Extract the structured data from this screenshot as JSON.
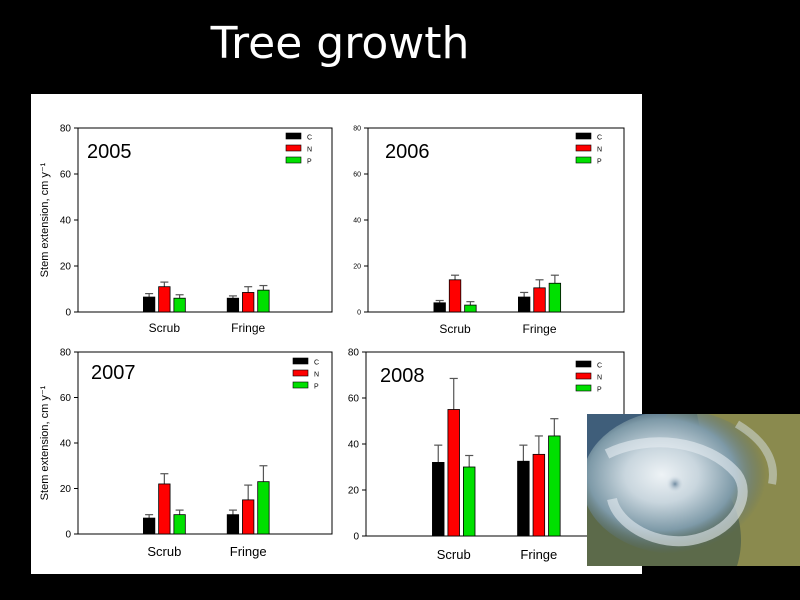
{
  "slide": {
    "title": "Tree growth"
  },
  "colors": {
    "C": "#000000",
    "N": "#ff0000",
    "P": "#00e000",
    "background": "#000000",
    "panel": "#ffffff"
  },
  "image": {
    "icon": "satellite-cyclone-image"
  },
  "chart_data": [
    {
      "type": "bar",
      "title": "2005",
      "categories": [
        "Scrub",
        "Fringe"
      ],
      "series": [
        {
          "name": "C",
          "values": [
            6.5,
            6.0
          ],
          "errors": [
            1.5,
            1.0
          ]
        },
        {
          "name": "N",
          "values": [
            11.0,
            8.5
          ],
          "errors": [
            2.0,
            2.5
          ]
        },
        {
          "name": "P",
          "values": [
            6.0,
            9.5
          ],
          "errors": [
            1.5,
            2.0
          ]
        }
      ],
      "ylabel": "Stem extension, cm y⁻¹",
      "ylim": [
        0,
        80
      ],
      "yticks": [
        0,
        20,
        40,
        60,
        80
      ],
      "legend": "top-right",
      "grid": false
    },
    {
      "type": "bar",
      "title": "2006",
      "categories": [
        "Scrub",
        "Fringe"
      ],
      "series": [
        {
          "name": "C",
          "values": [
            4.0,
            6.5
          ],
          "errors": [
            1.0,
            2.0
          ]
        },
        {
          "name": "N",
          "values": [
            14.0,
            10.5
          ],
          "errors": [
            2.0,
            3.5
          ]
        },
        {
          "name": "P",
          "values": [
            3.0,
            12.5
          ],
          "errors": [
            1.5,
            3.5
          ]
        }
      ],
      "ylabel": "",
      "ylim": [
        0,
        80
      ],
      "yticks": [
        0,
        20,
        40,
        60,
        80
      ],
      "legend": "top-right",
      "grid": false
    },
    {
      "type": "bar",
      "title": "2007",
      "categories": [
        "Scrub",
        "Fringe"
      ],
      "series": [
        {
          "name": "C",
          "values": [
            7.0,
            8.5
          ],
          "errors": [
            1.5,
            2.0
          ]
        },
        {
          "name": "N",
          "values": [
            22.0,
            15.0
          ],
          "errors": [
            4.5,
            6.5
          ]
        },
        {
          "name": "P",
          "values": [
            8.5,
            23.0
          ],
          "errors": [
            2.0,
            7.0
          ]
        }
      ],
      "ylabel": "Stem extension, cm y⁻¹",
      "ylim": [
        0,
        80
      ],
      "yticks": [
        0,
        20,
        40,
        60,
        80
      ],
      "legend": "top-right",
      "grid": false
    },
    {
      "type": "bar",
      "title": "2008",
      "categories": [
        "Scrub",
        "Fringe"
      ],
      "series": [
        {
          "name": "C",
          "values": [
            32.0,
            32.5
          ],
          "errors": [
            7.5,
            7.0
          ]
        },
        {
          "name": "N",
          "values": [
            55.0,
            35.5
          ],
          "errors": [
            13.5,
            8.0
          ]
        },
        {
          "name": "P",
          "values": [
            30.0,
            43.5
          ],
          "errors": [
            5.0,
            7.5
          ]
        }
      ],
      "ylabel": "",
      "ylim": [
        0,
        80
      ],
      "yticks": [
        0,
        20,
        40,
        60,
        80
      ],
      "legend": "top-right",
      "grid": false
    }
  ]
}
